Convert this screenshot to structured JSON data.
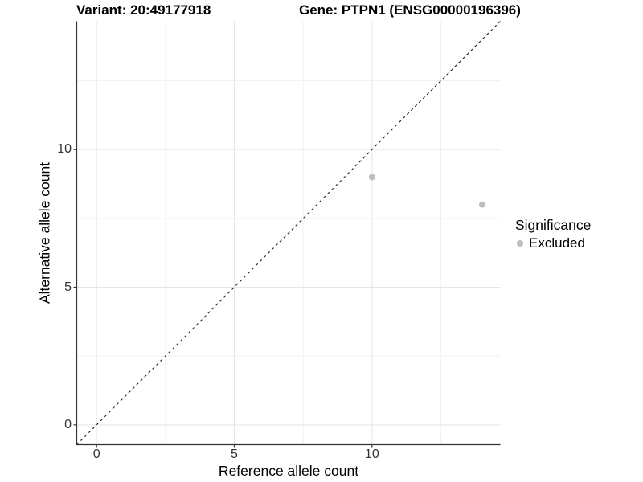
{
  "header": {
    "variant_title": "Variant: 20:49177918",
    "gene_title": "Gene: PTPN1 (ENSG00000196396)"
  },
  "chart_data": {
    "type": "scatter",
    "xlabel": "Reference allele count",
    "ylabel": "Alternative allele count",
    "xlim": [
      -0.72,
      14.66
    ],
    "ylim": [
      -0.72,
      14.66
    ],
    "x_major_ticks": [
      0,
      5,
      10
    ],
    "y_major_ticks": [
      0,
      5,
      10
    ],
    "x_minor_ticks": [
      2.5,
      7.5,
      12.5
    ],
    "y_minor_ticks": [
      2.5,
      7.5,
      12.5
    ],
    "grid": "on",
    "points": [
      {
        "x": 10,
        "y": 9,
        "series": "Excluded"
      },
      {
        "x": 14,
        "y": 8,
        "series": "Excluded"
      }
    ],
    "identity_line": {
      "type": "abline",
      "slope": 1,
      "intercept": 0,
      "style": "dashed"
    },
    "colors": {
      "point": "#bebebe",
      "grid_major": "#e5e5e5",
      "grid_minor": "#f2f2f2",
      "axis_line": "#333333",
      "dashed_line": "#222222",
      "tick_label": "#333333"
    }
  },
  "legend": {
    "title": "Significance",
    "items": [
      {
        "label": "Excluded",
        "color": "#bebebe"
      }
    ]
  }
}
